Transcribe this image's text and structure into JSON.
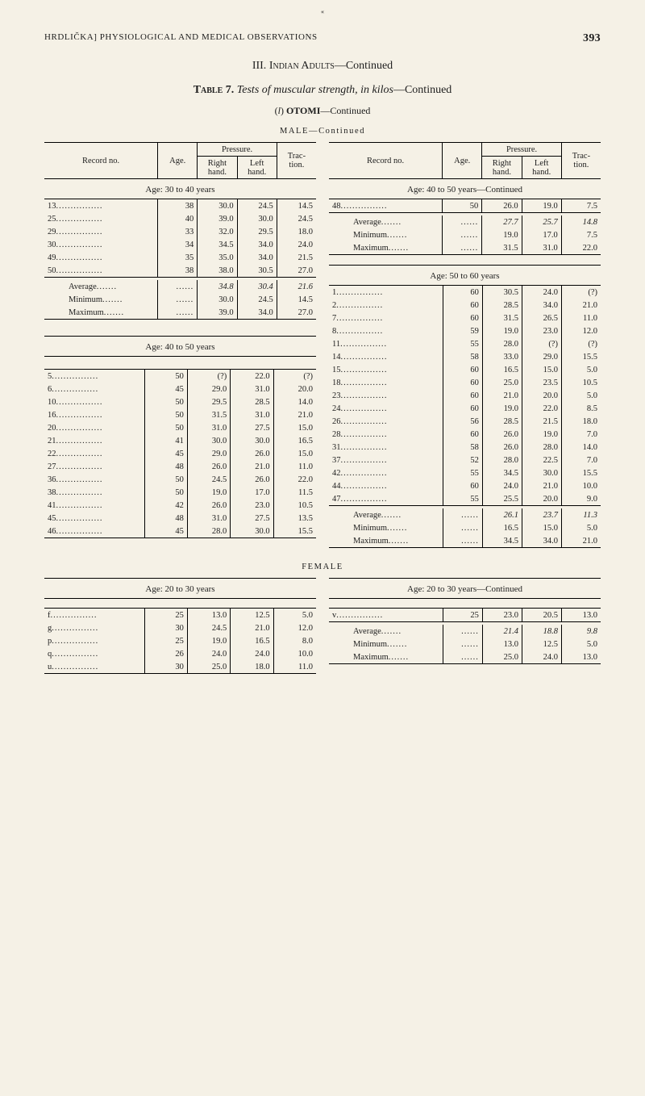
{
  "page": {
    "accent_mark": "«",
    "running_head_left": "HRDLIČKA]        PHYSIOLOGICAL AND MEDICAL OBSERVATIONS",
    "page_number": "393",
    "section_title_prefix": "III. ",
    "section_title_sc": "Indian Adults",
    "section_title_suffix": "—Continued",
    "table_title_prefix": "Table 7. ",
    "table_title_italic": "Tests of muscular strength, in kilos",
    "table_title_suffix": "—Continued",
    "subhead_paren_open": "(",
    "subhead_letter": "l",
    "subhead_paren_close": ") ",
    "subhead_word": "OTOMI",
    "subhead_cont": "—Continued",
    "gender_male": "MALE—Continued",
    "gender_female": "FEMALE",
    "column_headers": {
      "record_no": "Record no.",
      "age": "Age.",
      "pressure": "Pressure.",
      "right_hand": "Right hand.",
      "left_hand": "Left hand.",
      "traction": "Trac-tion."
    },
    "summary_labels": {
      "average": "Average",
      "minimum": "Minimum",
      "maximum": "Maximum"
    },
    "age_groups": {
      "m_30_40": "Age: 30 to 40 years",
      "m_40_50": "Age: 40 to 50 years",
      "m_40_50_cont": "Age: 40 to 50 years—Continued",
      "m_50_60": "Age: 50 to 60 years",
      "f_20_30": "Age: 20 to 30 years",
      "f_20_30_cont": "Age: 20 to 30 years—Continued"
    },
    "tables": {
      "male_30_40": {
        "rows": [
          {
            "no": "13",
            "age": "38",
            "rh": "30.0",
            "lh": "24.5",
            "tr": "14.5"
          },
          {
            "no": "25",
            "age": "40",
            "rh": "39.0",
            "lh": "30.0",
            "tr": "24.5"
          },
          {
            "no": "29",
            "age": "33",
            "rh": "32.0",
            "lh": "29.5",
            "tr": "18.0"
          },
          {
            "no": "30",
            "age": "34",
            "rh": "34.5",
            "lh": "34.0",
            "tr": "24.0"
          },
          {
            "no": "49",
            "age": "35",
            "rh": "35.0",
            "lh": "34.0",
            "tr": "21.5"
          },
          {
            "no": "50",
            "age": "38",
            "rh": "38.0",
            "lh": "30.5",
            "tr": "27.0"
          }
        ],
        "summary": {
          "average": {
            "rh": "34.8",
            "lh": "30.4",
            "tr": "21.6"
          },
          "minimum": {
            "rh": "30.0",
            "lh": "24.5",
            "tr": "14.5"
          },
          "maximum": {
            "rh": "39.0",
            "lh": "34.0",
            "tr": "27.0"
          }
        }
      },
      "male_40_50_a": {
        "rows": [
          {
            "no": "5",
            "age": "50",
            "rh": "(?)",
            "lh": "22.0",
            "tr": "(?)"
          },
          {
            "no": "6",
            "age": "45",
            "rh": "29.0",
            "lh": "31.0",
            "tr": "20.0"
          },
          {
            "no": "10",
            "age": "50",
            "rh": "29.5",
            "lh": "28.5",
            "tr": "14.0"
          },
          {
            "no": "16",
            "age": "50",
            "rh": "31.5",
            "lh": "31.0",
            "tr": "21.0"
          },
          {
            "no": "20",
            "age": "50",
            "rh": "31.0",
            "lh": "27.5",
            "tr": "15.0"
          },
          {
            "no": "21",
            "age": "41",
            "rh": "30.0",
            "lh": "30.0",
            "tr": "16.5"
          },
          {
            "no": "22",
            "age": "45",
            "rh": "29.0",
            "lh": "26.0",
            "tr": "15.0"
          },
          {
            "no": "27",
            "age": "48",
            "rh": "26.0",
            "lh": "21.0",
            "tr": "11.0"
          },
          {
            "no": "36",
            "age": "50",
            "rh": "24.5",
            "lh": "26.0",
            "tr": "22.0"
          },
          {
            "no": "38",
            "age": "50",
            "rh": "19.0",
            "lh": "17.0",
            "tr": "11.5"
          },
          {
            "no": "41",
            "age": "42",
            "rh": "26.0",
            "lh": "23.0",
            "tr": "10.5"
          },
          {
            "no": "45",
            "age": "48",
            "rh": "31.0",
            "lh": "27.5",
            "tr": "13.5"
          },
          {
            "no": "46",
            "age": "45",
            "rh": "28.0",
            "lh": "30.0",
            "tr": "15.5"
          }
        ]
      },
      "male_40_50_b": {
        "rows": [
          {
            "no": "48",
            "age": "50",
            "rh": "26.0",
            "lh": "19.0",
            "tr": "7.5"
          }
        ],
        "summary": {
          "average": {
            "rh": "27.7",
            "lh": "25.7",
            "tr": "14.8"
          },
          "minimum": {
            "rh": "19.0",
            "lh": "17.0",
            "tr": "7.5"
          },
          "maximum": {
            "rh": "31.5",
            "lh": "31.0",
            "tr": "22.0"
          }
        }
      },
      "male_50_60": {
        "rows": [
          {
            "no": "1",
            "age": "60",
            "rh": "30.5",
            "lh": "24.0",
            "tr": "(?)"
          },
          {
            "no": "2",
            "age": "60",
            "rh": "28.5",
            "lh": "34.0",
            "tr": "21.0"
          },
          {
            "no": "7",
            "age": "60",
            "rh": "31.5",
            "lh": "26.5",
            "tr": "11.0"
          },
          {
            "no": "8",
            "age": "59",
            "rh": "19.0",
            "lh": "23.0",
            "tr": "12.0"
          },
          {
            "no": "11",
            "age": "55",
            "rh": "28.0",
            "lh": "(?)",
            "tr": "(?)"
          },
          {
            "no": "14",
            "age": "58",
            "rh": "33.0",
            "lh": "29.0",
            "tr": "15.5"
          },
          {
            "no": "15",
            "age": "60",
            "rh": "16.5",
            "lh": "15.0",
            "tr": "5.0"
          },
          {
            "no": "18",
            "age": "60",
            "rh": "25.0",
            "lh": "23.5",
            "tr": "10.5"
          },
          {
            "no": "23",
            "age": "60",
            "rh": "21.0",
            "lh": "20.0",
            "tr": "5.0"
          },
          {
            "no": "24",
            "age": "60",
            "rh": "19.0",
            "lh": "22.0",
            "tr": "8.5"
          },
          {
            "no": "26",
            "age": "56",
            "rh": "28.5",
            "lh": "21.5",
            "tr": "18.0"
          },
          {
            "no": "28",
            "age": "60",
            "rh": "26.0",
            "lh": "19.0",
            "tr": "7.0"
          },
          {
            "no": "31",
            "age": "58",
            "rh": "26.0",
            "lh": "28.0",
            "tr": "14.0"
          },
          {
            "no": "37",
            "age": "52",
            "rh": "28.0",
            "lh": "22.5",
            "tr": "7.0"
          },
          {
            "no": "42",
            "age": "55",
            "rh": "34.5",
            "lh": "30.0",
            "tr": "15.5"
          },
          {
            "no": "44",
            "age": "60",
            "rh": "24.0",
            "lh": "21.0",
            "tr": "10.0"
          },
          {
            "no": "47",
            "age": "55",
            "rh": "25.5",
            "lh": "20.0",
            "tr": "9.0"
          }
        ],
        "summary": {
          "average": {
            "rh": "26.1",
            "lh": "23.7",
            "tr": "11.3"
          },
          "minimum": {
            "rh": "16.5",
            "lh": "15.0",
            "tr": "5.0"
          },
          "maximum": {
            "rh": "34.5",
            "lh": "34.0",
            "tr": "21.0"
          }
        }
      },
      "female_20_30_a": {
        "rows": [
          {
            "no": "f",
            "age": "25",
            "rh": "13.0",
            "lh": "12.5",
            "tr": "5.0"
          },
          {
            "no": "g",
            "age": "30",
            "rh": "24.5",
            "lh": "21.0",
            "tr": "12.0"
          },
          {
            "no": "p",
            "age": "25",
            "rh": "19.0",
            "lh": "16.5",
            "tr": "8.0"
          },
          {
            "no": "q",
            "age": "26",
            "rh": "24.0",
            "lh": "24.0",
            "tr": "10.0"
          },
          {
            "no": "u",
            "age": "30",
            "rh": "25.0",
            "lh": "18.0",
            "tr": "11.0"
          }
        ]
      },
      "female_20_30_b": {
        "rows": [
          {
            "no": "v",
            "age": "25",
            "rh": "23.0",
            "lh": "20.5",
            "tr": "13.0"
          }
        ],
        "summary": {
          "average": {
            "rh": "21.4",
            "lh": "18.8",
            "tr": "9.8"
          },
          "minimum": {
            "rh": "13.0",
            "lh": "12.5",
            "tr": "5.0"
          },
          "maximum": {
            "rh": "25.0",
            "lh": "24.0",
            "tr": "13.0"
          }
        }
      }
    }
  }
}
